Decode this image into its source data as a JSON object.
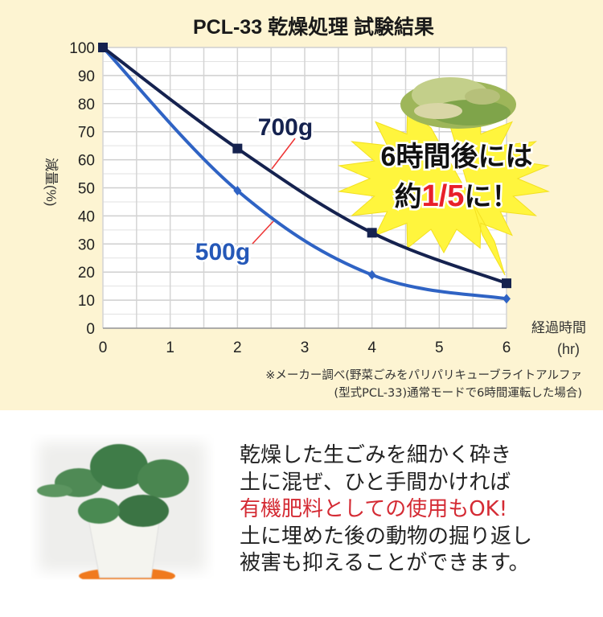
{
  "chart_data": {
    "type": "line",
    "title": "PCL-33 乾燥処理 試験結果",
    "xlabel": "経過時間",
    "xunit": "(hr)",
    "ylabel": "減量(%)",
    "x": [
      0,
      2,
      4,
      6
    ],
    "xticks": [
      "0",
      "1",
      "2",
      "3",
      "4",
      "5",
      "6"
    ],
    "yticks": [
      "0",
      "10",
      "20",
      "30",
      "40",
      "50",
      "60",
      "70",
      "80",
      "90",
      "100"
    ],
    "xlim": [
      0,
      6
    ],
    "ylim": [
      0,
      100
    ],
    "grid": true,
    "series": [
      {
        "name": "700g",
        "values": [
          100,
          64,
          34,
          16
        ],
        "color": "#15224f",
        "marker": "square"
      },
      {
        "name": "500g",
        "values": [
          100,
          49,
          19,
          10.5
        ],
        "color": "#2f63c4",
        "marker": "diamond"
      }
    ],
    "callout": {
      "line1": "6時間後には",
      "line2_prefix": "約",
      "line2_highlight": "1/5",
      "line2_suffix": "に！",
      "highlight_color": "#e8202a",
      "burst_color": "#fff53d"
    }
  },
  "note": {
    "line1": "※メーカー調べ(野菜ごみをパリパリキューブライトアルファ",
    "line2": "(型式PCL-33)通常モードで6時間運転した場合)"
  },
  "copy": {
    "line1": "乾燥した生ごみを細かく砕き",
    "line2": "土に混ぜ、ひと手間かければ",
    "line3": "有機肥料としての使用もOK!",
    "line4": "土に埋めた後の動物の掘り返し",
    "line5": "被害も抑えることができます。"
  }
}
